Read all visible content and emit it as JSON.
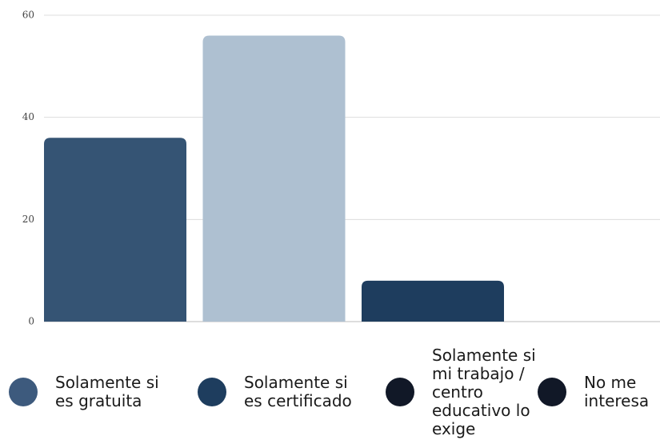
{
  "chart_data": {
    "type": "bar",
    "categories": [
      "Solamente si es gratuita",
      "Solamente si es certificado",
      "Solamente si mi trabajo / centro educativo lo exige",
      "No me interesa"
    ],
    "values": [
      36,
      56,
      8,
      0
    ],
    "colors": [
      "#355474",
      "#aec0d1",
      "#1e3d5e",
      "#1e3d5e"
    ],
    "legend_colors": [
      "#3d5a7d",
      "#1e3d5e",
      "#111827",
      "#111827"
    ],
    "ylim": [
      0,
      60
    ],
    "yticks": [
      0,
      20,
      40,
      60
    ],
    "grid": true
  }
}
